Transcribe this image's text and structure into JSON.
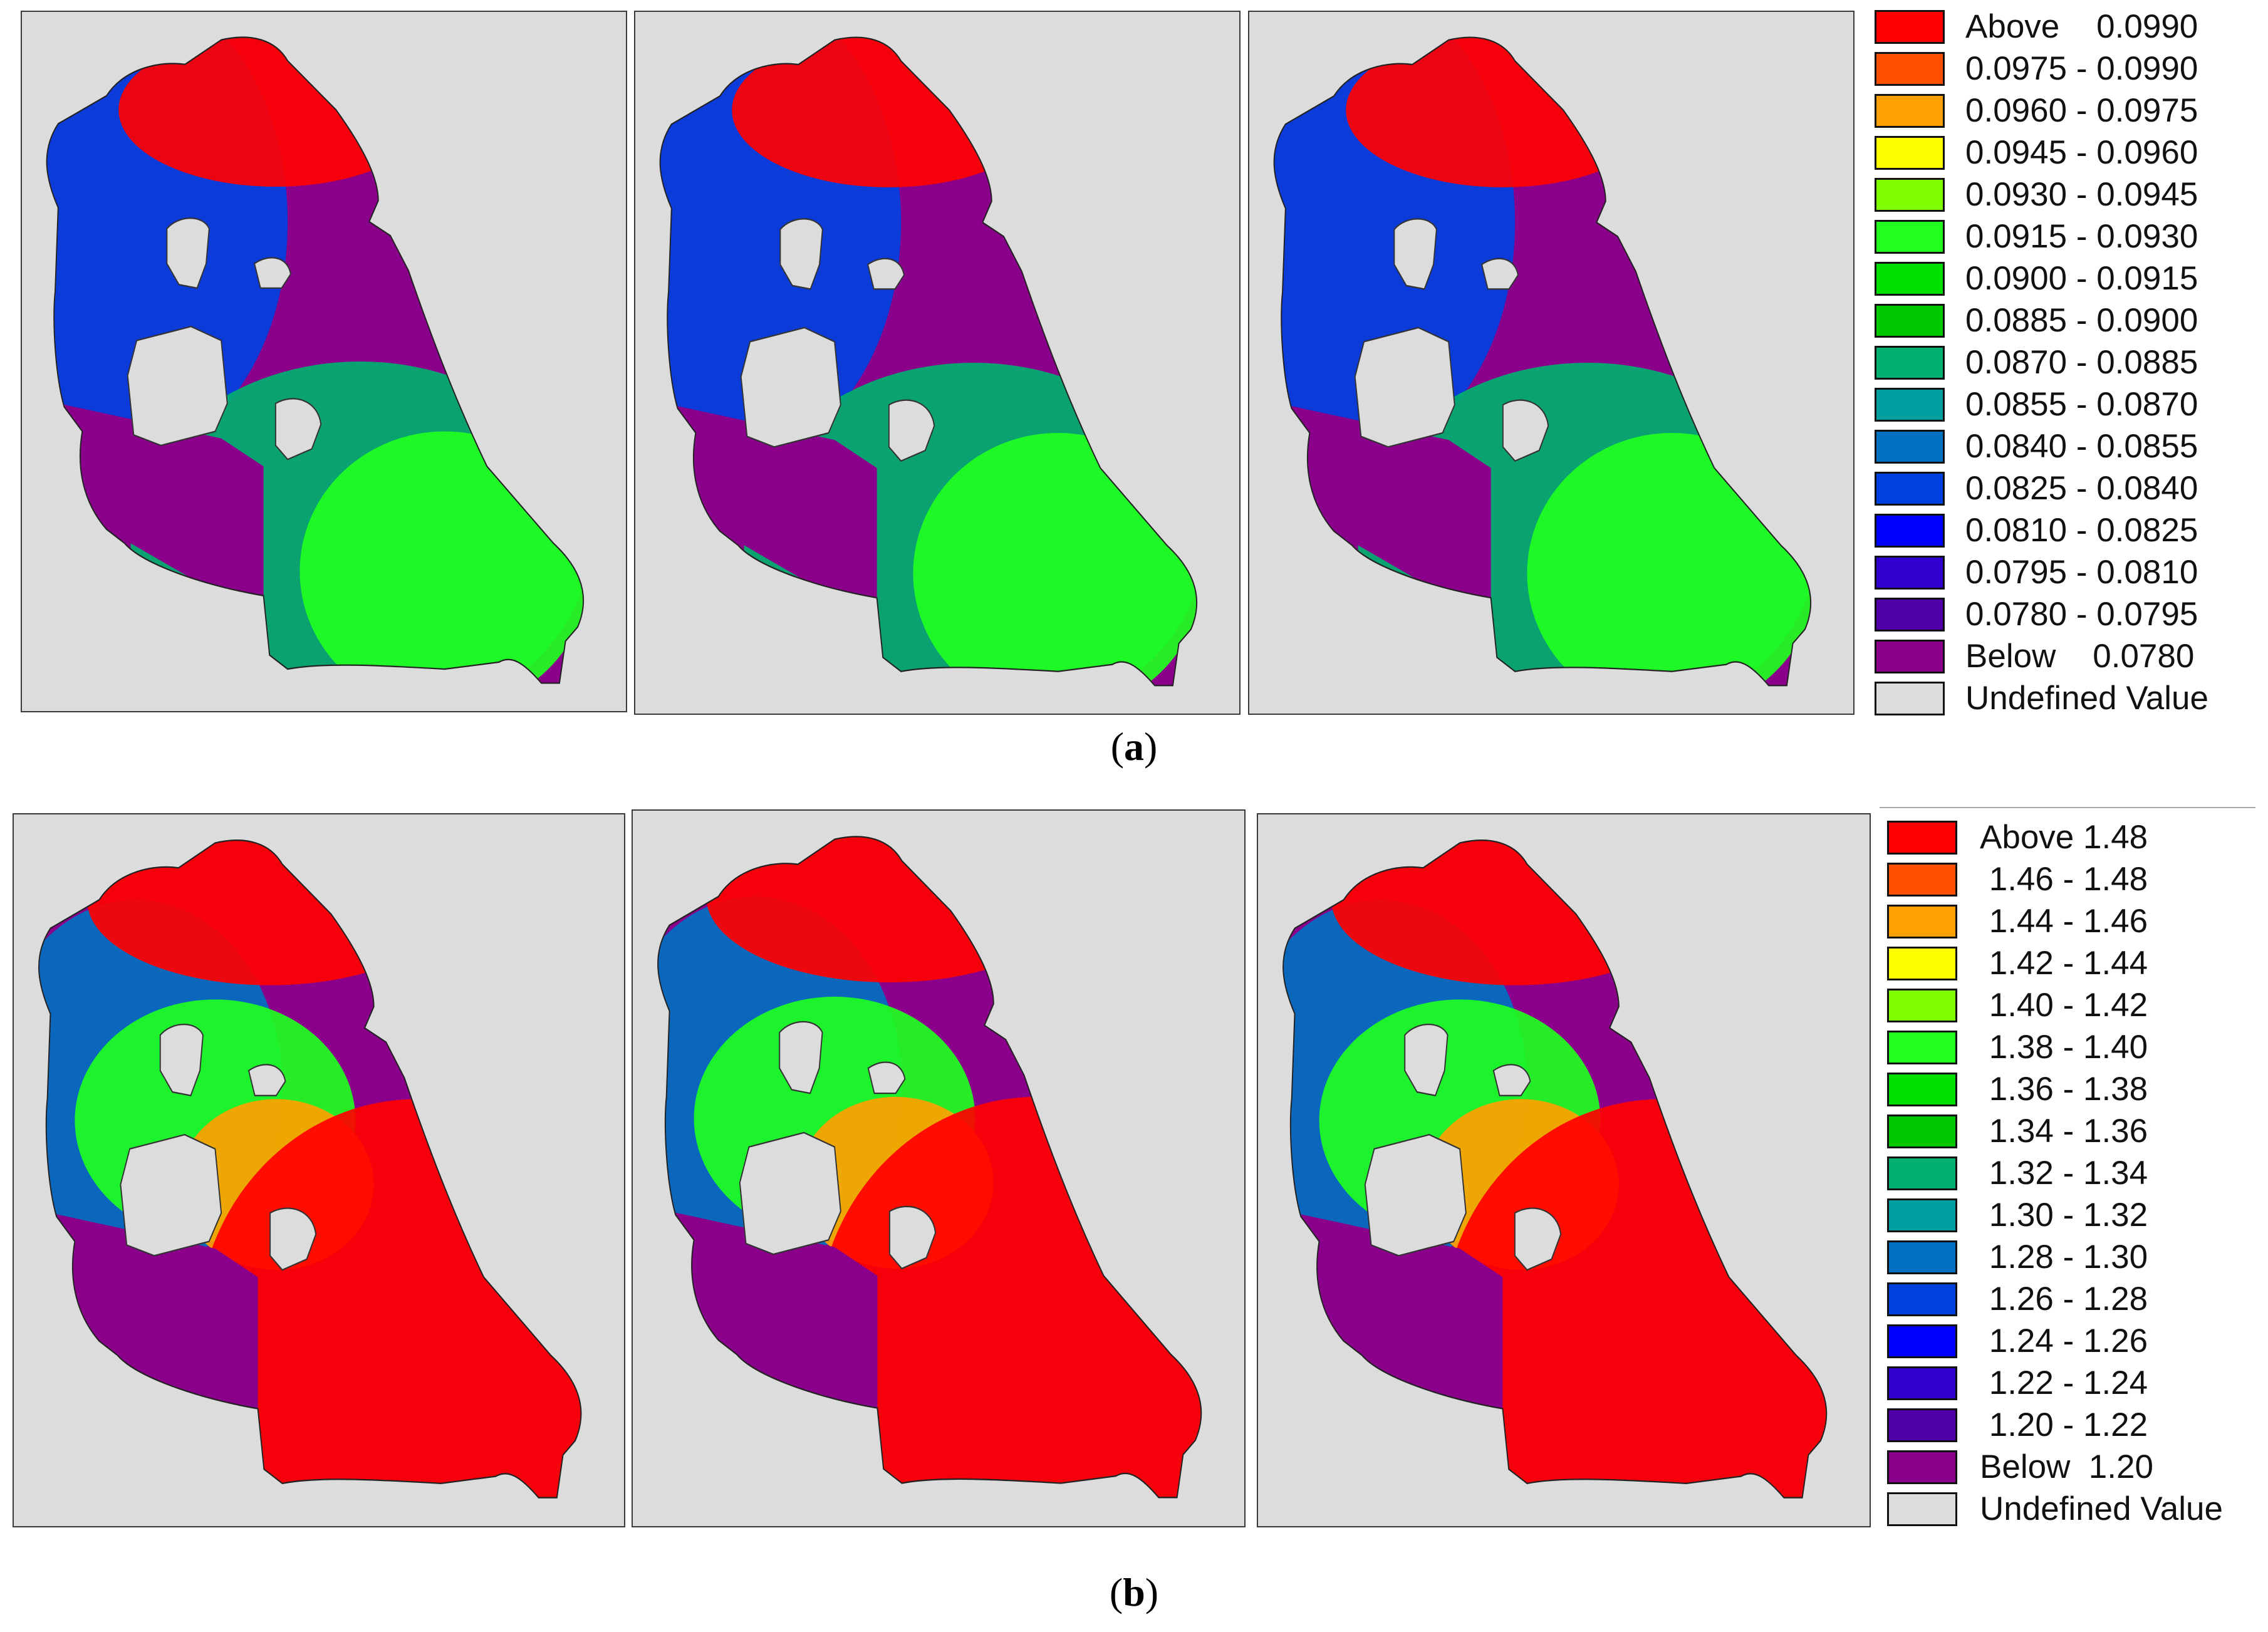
{
  "figure": {
    "caption_a": {
      "open": "(",
      "letter": "a",
      "close": ")"
    },
    "caption_b": {
      "open": "(",
      "letter": "b",
      "close": ")"
    }
  },
  "legend_a": {
    "undefined_color": "#dcdcdc",
    "items": [
      {
        "label": "Above    0.0990",
        "color": "#ff0000"
      },
      {
        "label": "0.0975 - 0.0990",
        "color": "#ff5000"
      },
      {
        "label": "0.0960 - 0.0975",
        "color": "#ffa000"
      },
      {
        "label": "0.0945 - 0.0960",
        "color": "#ffff00"
      },
      {
        "label": "0.0930 - 0.0945",
        "color": "#80ff00"
      },
      {
        "label": "0.0915 - 0.0930",
        "color": "#20ff20"
      },
      {
        "label": "0.0900 - 0.0915",
        "color": "#00e000"
      },
      {
        "label": "0.0885 - 0.0900",
        "color": "#00c800"
      },
      {
        "label": "0.0870 - 0.0885",
        "color": "#00b070"
      },
      {
        "label": "0.0855 - 0.0870",
        "color": "#00a0a0"
      },
      {
        "label": "0.0840 - 0.0855",
        "color": "#0070c0"
      },
      {
        "label": "0.0825 - 0.0840",
        "color": "#0040e0"
      },
      {
        "label": "0.0810 - 0.0825",
        "color": "#0000ff"
      },
      {
        "label": "0.0795 - 0.0810",
        "color": "#3000d0"
      },
      {
        "label": "0.0780 - 0.0795",
        "color": "#5000a8"
      },
      {
        "label": "Below    0.0780",
        "color": "#8b008b"
      },
      {
        "label": "Undefined Value",
        "color": "#dcdcdc"
      }
    ]
  },
  "legend_b": {
    "items": [
      {
        "label": "Above 1.48",
        "color": "#ff0000"
      },
      {
        "label": " 1.46 - 1.48",
        "color": "#ff5000"
      },
      {
        "label": " 1.44 - 1.46",
        "color": "#ffa000"
      },
      {
        "label": " 1.42 - 1.44",
        "color": "#ffff00"
      },
      {
        "label": " 1.40 - 1.42",
        "color": "#80ff00"
      },
      {
        "label": " 1.38 - 1.40",
        "color": "#20ff20"
      },
      {
        "label": " 1.36 - 1.38",
        "color": "#00e000"
      },
      {
        "label": " 1.34 - 1.36",
        "color": "#00c800"
      },
      {
        "label": " 1.32 - 1.34",
        "color": "#00b070"
      },
      {
        "label": " 1.30 - 1.32",
        "color": "#00a0a0"
      },
      {
        "label": " 1.28 - 1.30",
        "color": "#0070c0"
      },
      {
        "label": " 1.26 - 1.28",
        "color": "#0040e0"
      },
      {
        "label": " 1.24 - 1.26",
        "color": "#0000ff"
      },
      {
        "label": " 1.22 - 1.24",
        "color": "#3000d0"
      },
      {
        "label": " 1.20 - 1.22",
        "color": "#5000a8"
      },
      {
        "label": "Below  1.20",
        "color": "#8b008b"
      },
      {
        "label": "Undefined Value",
        "color": "#dcdcdc"
      }
    ]
  },
  "maps": {
    "a": {
      "scheme": "a",
      "fills": [
        "#8b008b",
        "#0040e0",
        "#00b070",
        "#20ff20",
        "#ff0000"
      ]
    },
    "b": {
      "scheme": "b",
      "fills": [
        "#8b008b",
        "#0070c0",
        "#20ff20",
        "#ffa000",
        "#ff0000"
      ]
    }
  }
}
